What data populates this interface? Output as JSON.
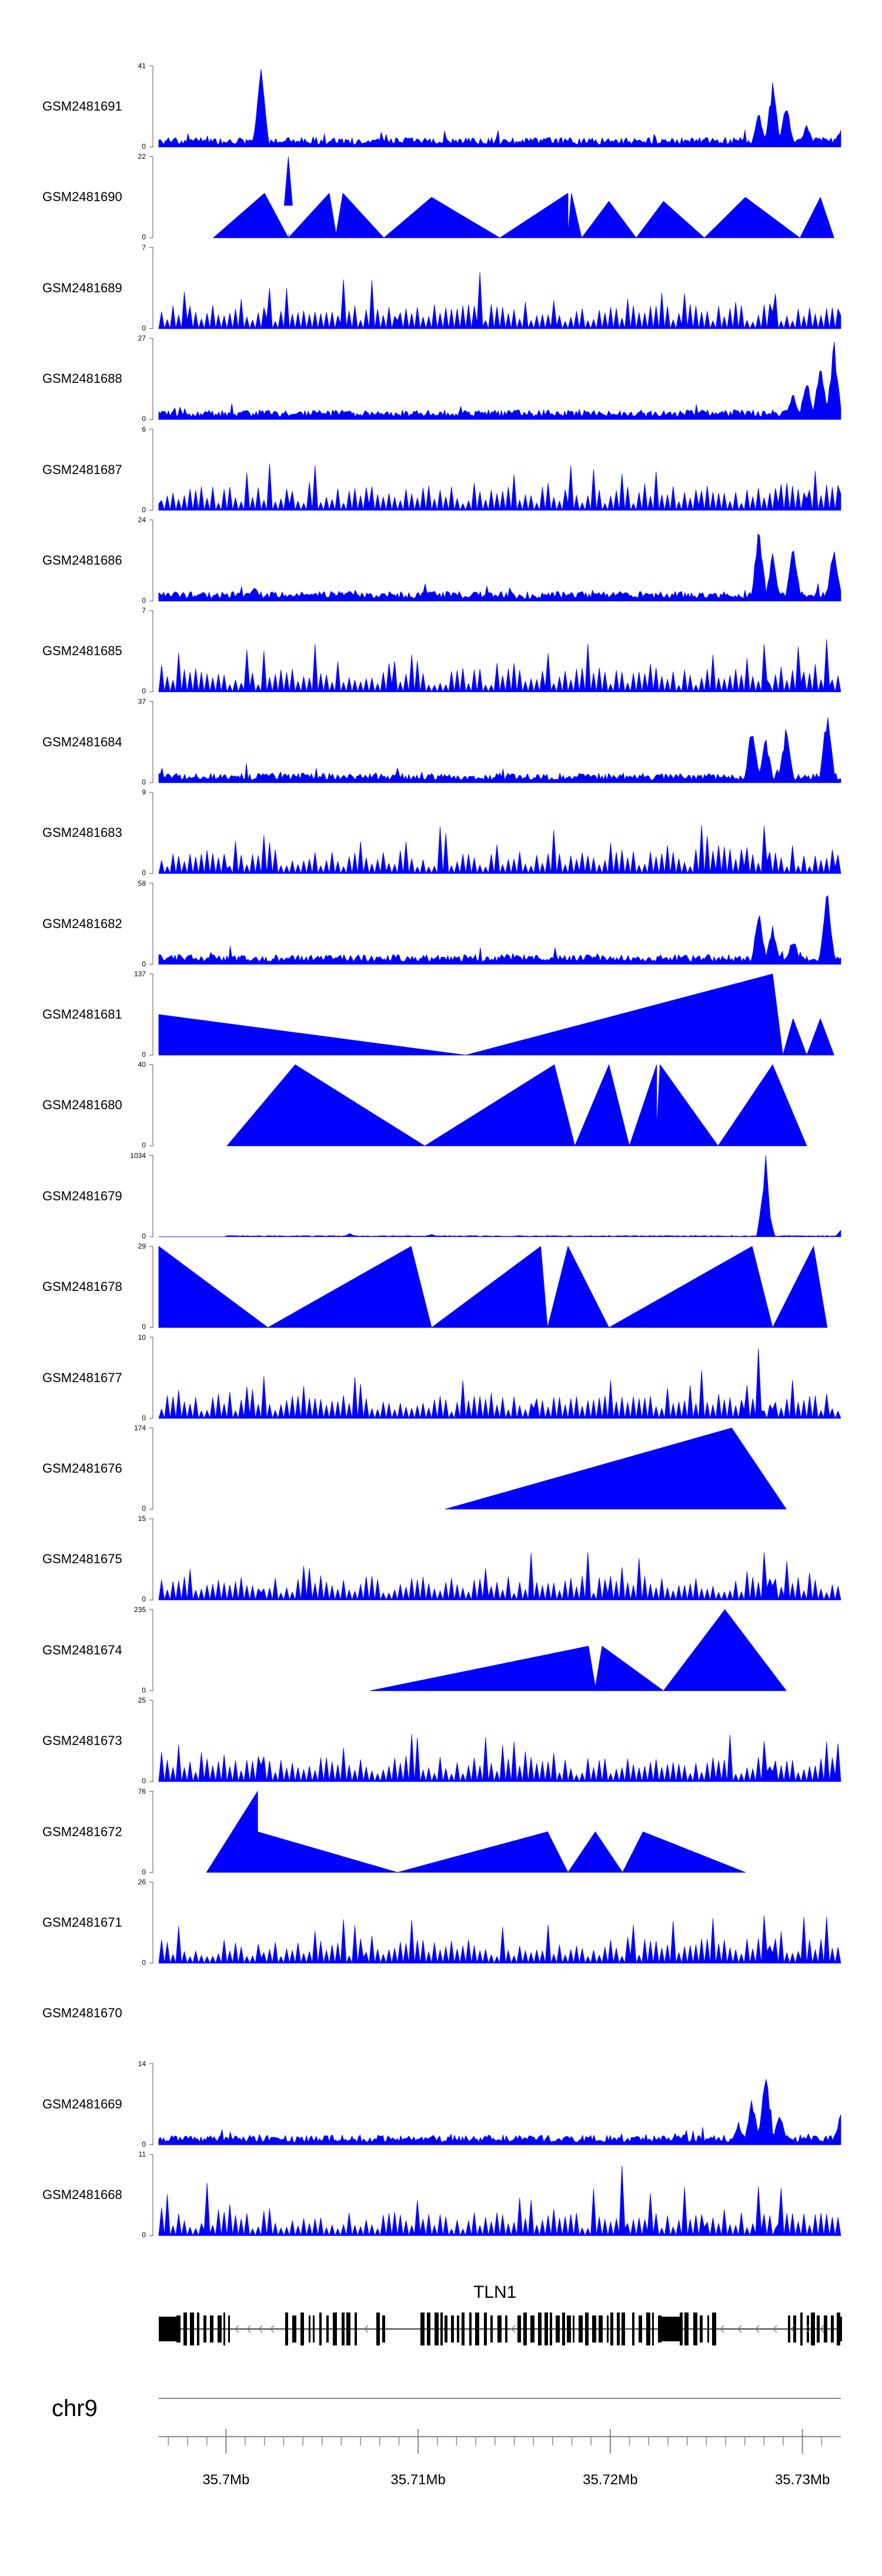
{
  "chart_data": {
    "type": "area",
    "title": "",
    "chromosome": "chr9",
    "gene": "TLN1",
    "xlim": [
      35.6965,
      35.732
    ],
    "xlabel": "",
    "x_ticks": [
      35.7,
      35.71,
      35.72,
      35.73
    ],
    "x_tick_labels": [
      "35.7Mb",
      "35.71Mb",
      "35.72Mb",
      "35.73Mb"
    ],
    "colors": {
      "signal": "#0000ff",
      "axis": "#555555",
      "gene": "#000000"
    },
    "tracks": [
      {
        "name": "GSM2481691",
        "ymax": 41,
        "ymin": 0,
        "profile": "dense",
        "peaks": [
          [
            0.15,
            1.0
          ],
          [
            0.9,
            0.85
          ],
          [
            0.92,
            0.6
          ],
          [
            0.88,
            0.45
          ],
          [
            0.95,
            0.3
          ],
          [
            1.0,
            0.25
          ]
        ]
      },
      {
        "name": "GSM2481690",
        "ymax": 22,
        "ymin": 0,
        "profile": "triangles",
        "points": [
          [
            0.08,
            0
          ],
          [
            0.155,
            0.55
          ],
          [
            0.19,
            0
          ],
          [
            0.19,
            0.05
          ],
          [
            0.19,
            0
          ],
          [
            0.25,
            0.55
          ],
          [
            0.26,
            0.05
          ],
          [
            0.27,
            0.55
          ],
          [
            0.33,
            0
          ],
          [
            0.4,
            0.5
          ],
          [
            0.5,
            0
          ],
          [
            0.6,
            0.55
          ],
          [
            0.6,
            0.05
          ],
          [
            0.605,
            0.55
          ],
          [
            0.62,
            0
          ],
          [
            0.66,
            0.45
          ],
          [
            0.7,
            0
          ],
          [
            0.74,
            0.45
          ],
          [
            0.8,
            0
          ],
          [
            0.86,
            0.5
          ],
          [
            0.94,
            0
          ],
          [
            0.97,
            0.5
          ],
          [
            0.99,
            0
          ]
        ],
        "spikes": [
          [
            0.19,
            1.0
          ]
        ]
      },
      {
        "name": "GSM2481689",
        "ymax": 7,
        "ymin": 0,
        "profile": "sparse",
        "peaks": [
          [
            0.04,
            0.7
          ],
          [
            0.16,
            0.85
          ],
          [
            0.27,
            0.7
          ],
          [
            0.47,
            0.8
          ],
          [
            0.9,
            1.0
          ],
          [
            1.0,
            0.8
          ],
          [
            0.35,
            0.5
          ],
          [
            0.58,
            0.4
          ],
          [
            0.77,
            0.5
          ]
        ]
      },
      {
        "name": "GSM2481688",
        "ymax": 27,
        "ymin": 0,
        "profile": "dense",
        "peaks": [
          [
            0.99,
            1.0
          ],
          [
            0.95,
            0.55
          ],
          [
            0.93,
            0.35
          ],
          [
            0.97,
            0.75
          ],
          [
            0.16,
            0.12
          ]
        ]
      },
      {
        "name": "GSM2481687",
        "ymax": 6,
        "ymin": 0,
        "profile": "sparse",
        "peaks": [
          [
            1.0,
            1.0
          ],
          [
            0.95,
            0.7
          ],
          [
            0.91,
            0.55
          ],
          [
            0.31,
            0.5
          ],
          [
            0.19,
            0.45
          ],
          [
            0.0,
            0.4
          ],
          [
            0.6,
            0.4
          ],
          [
            0.79,
            0.4
          ]
        ]
      },
      {
        "name": "GSM2481686",
        "ymax": 24,
        "ymin": 0,
        "profile": "dense",
        "peaks": [
          [
            0.88,
            0.95
          ],
          [
            0.93,
            0.8
          ],
          [
            0.99,
            0.75
          ],
          [
            0.9,
            0.6
          ],
          [
            0.14,
            0.2
          ]
        ]
      },
      {
        "name": "GSM2481685",
        "ymax": 7,
        "ymin": 0,
        "profile": "sparse",
        "peaks": [
          [
            0.89,
            1.0
          ],
          [
            0.94,
            0.75
          ],
          [
            0.98,
            0.75
          ],
          [
            0.13,
            0.6
          ],
          [
            0.34,
            0.6
          ],
          [
            0.57,
            0.55
          ],
          [
            0.72,
            0.4
          ]
        ]
      },
      {
        "name": "GSM2481684",
        "ymax": 37,
        "ymin": 0,
        "profile": "dense",
        "peaks": [
          [
            0.87,
            0.8
          ],
          [
            0.92,
            0.75
          ],
          [
            0.98,
            0.95
          ],
          [
            0.89,
            0.6
          ]
        ]
      },
      {
        "name": "GSM2481683",
        "ymax": 9,
        "ymin": 0,
        "profile": "sparse",
        "peaks": [
          [
            0.89,
            1.0
          ],
          [
            0.86,
            0.55
          ],
          [
            0.99,
            0.5
          ],
          [
            0.1,
            0.3
          ],
          [
            0.33,
            0.3
          ],
          [
            0.62,
            0.3
          ],
          [
            0.82,
            0.4
          ]
        ]
      },
      {
        "name": "GSM2481682",
        "ymax": 58,
        "ymin": 0,
        "profile": "dense",
        "peaks": [
          [
            0.98,
            1.0
          ],
          [
            0.88,
            0.7
          ],
          [
            0.9,
            0.5
          ],
          [
            0.93,
            0.35
          ]
        ]
      },
      {
        "name": "GSM2481681",
        "ymax": 137,
        "ymin": 0,
        "profile": "triangles",
        "points": [
          [
            0.0,
            0.5
          ],
          [
            0.45,
            0
          ],
          [
            0.9,
            1.0
          ],
          [
            0.915,
            0
          ],
          [
            0.93,
            0.45
          ],
          [
            0.95,
            0
          ],
          [
            0.97,
            0.45
          ],
          [
            0.99,
            0
          ]
        ]
      },
      {
        "name": "GSM2481680",
        "ymax": 40,
        "ymin": 0,
        "profile": "triangles",
        "points": [
          [
            0.1,
            0
          ],
          [
            0.2,
            1.0
          ],
          [
            0.39,
            0
          ],
          [
            0.58,
            1.0
          ],
          [
            0.61,
            0
          ],
          [
            0.66,
            1.0
          ],
          [
            0.69,
            0
          ],
          [
            0.73,
            1.0
          ],
          [
            0.73,
            0.2
          ],
          [
            0.735,
            1.0
          ],
          [
            0.82,
            0
          ],
          [
            0.9,
            1.0
          ],
          [
            0.95,
            0
          ]
        ]
      },
      {
        "name": "GSM2481679",
        "ymax": 1034,
        "ymin": 0,
        "profile": "baseline",
        "peaks": [
          [
            0.89,
            1.0
          ],
          [
            0.885,
            0.5
          ],
          [
            0.895,
            0.3
          ],
          [
            1.0,
            0.08
          ],
          [
            0.28,
            0.04
          ],
          [
            0.4,
            0.03
          ]
        ]
      },
      {
        "name": "GSM2481678",
        "ymax": 29,
        "ymin": 0,
        "profile": "triangles",
        "points": [
          [
            0.0,
            1.0
          ],
          [
            0.16,
            0
          ],
          [
            0.37,
            1.0
          ],
          [
            0.4,
            0
          ],
          [
            0.56,
            1.0
          ],
          [
            0.57,
            0
          ],
          [
            0.6,
            1.0
          ],
          [
            0.66,
            0
          ],
          [
            0.87,
            1.0
          ],
          [
            0.9,
            0
          ],
          [
            0.96,
            1.0
          ],
          [
            0.98,
            0
          ]
        ]
      },
      {
        "name": "GSM2481677",
        "ymax": 10,
        "ymin": 0,
        "profile": "sparse",
        "peaks": [
          [
            0.88,
            1.0
          ],
          [
            0.86,
            0.7
          ],
          [
            0.9,
            0.55
          ],
          [
            0.55,
            0.6
          ],
          [
            0.13,
            0.45
          ],
          [
            0.98,
            0.35
          ]
        ]
      },
      {
        "name": "GSM2481676",
        "ymax": 174,
        "ymin": 0,
        "profile": "triangles",
        "points": [
          [
            0.42,
            0
          ],
          [
            0.84,
            1.0
          ],
          [
            0.92,
            0
          ]
        ]
      },
      {
        "name": "GSM2481675",
        "ymax": 15,
        "ymin": 0,
        "profile": "sparse",
        "peaks": [
          [
            0.89,
            1.0
          ],
          [
            0.9,
            0.85
          ],
          [
            0.92,
            0.55
          ],
          [
            0.66,
            0.5
          ],
          [
            0.15,
            0.45
          ],
          [
            0.22,
            0.45
          ],
          [
            0.48,
            0.45
          ]
        ]
      },
      {
        "name": "GSM2481674",
        "ymax": 235,
        "ymin": 0,
        "profile": "triangles",
        "points": [
          [
            0.31,
            0
          ],
          [
            0.63,
            0.55
          ],
          [
            0.64,
            0.05
          ],
          [
            0.65,
            0.55
          ],
          [
            0.74,
            0
          ],
          [
            0.83,
            1.0
          ],
          [
            0.92,
            0
          ]
        ]
      },
      {
        "name": "GSM2481673",
        "ymax": 25,
        "ymin": 0,
        "profile": "sparse",
        "peaks": [
          [
            0.15,
            1.0
          ],
          [
            0.89,
            0.85
          ],
          [
            0.9,
            0.6
          ],
          [
            0.99,
            0.5
          ],
          [
            0.07,
            0.25
          ],
          [
            0.82,
            0.3
          ]
        ]
      },
      {
        "name": "GSM2481672",
        "ymax": 76,
        "ymin": 0,
        "profile": "triangles",
        "points": [
          [
            0.07,
            0
          ],
          [
            0.145,
            1.0
          ],
          [
            0.145,
            0.5
          ],
          [
            0.35,
            0
          ],
          [
            0.57,
            0.5
          ],
          [
            0.6,
            0
          ],
          [
            0.64,
            0.5
          ],
          [
            0.68,
            0
          ],
          [
            0.71,
            0.5
          ],
          [
            0.86,
            0
          ]
        ]
      },
      {
        "name": "GSM2481671",
        "ymax": 26,
        "ymin": 0,
        "profile": "sparse",
        "peaks": [
          [
            0.89,
            1.0
          ],
          [
            0.9,
            0.6
          ],
          [
            0.69,
            0.55
          ],
          [
            0.3,
            0.35
          ],
          [
            0.15,
            0.3
          ],
          [
            0.94,
            0.25
          ]
        ]
      },
      {
        "name": "GSM2481670",
        "ymax": null,
        "ymin": null,
        "profile": "empty",
        "peaks": []
      },
      {
        "name": "GSM2481669",
        "ymax": 14,
        "ymin": 0,
        "profile": "dense",
        "peaks": [
          [
            0.89,
            1.0
          ],
          [
            0.87,
            0.6
          ],
          [
            0.91,
            0.45
          ],
          [
            1.0,
            0.4
          ],
          [
            0.85,
            0.3
          ]
        ]
      },
      {
        "name": "GSM2481668",
        "ymax": 11,
        "ymin": 0,
        "profile": "sparse",
        "peaks": [
          [
            0.07,
            0.75
          ],
          [
            0.68,
            1.0
          ],
          [
            0.91,
            1.0
          ],
          [
            0.88,
            0.7
          ],
          [
            0.72,
            0.6
          ],
          [
            0.8,
            0.5
          ],
          [
            0.38,
            0.5
          ]
        ]
      }
    ]
  }
}
